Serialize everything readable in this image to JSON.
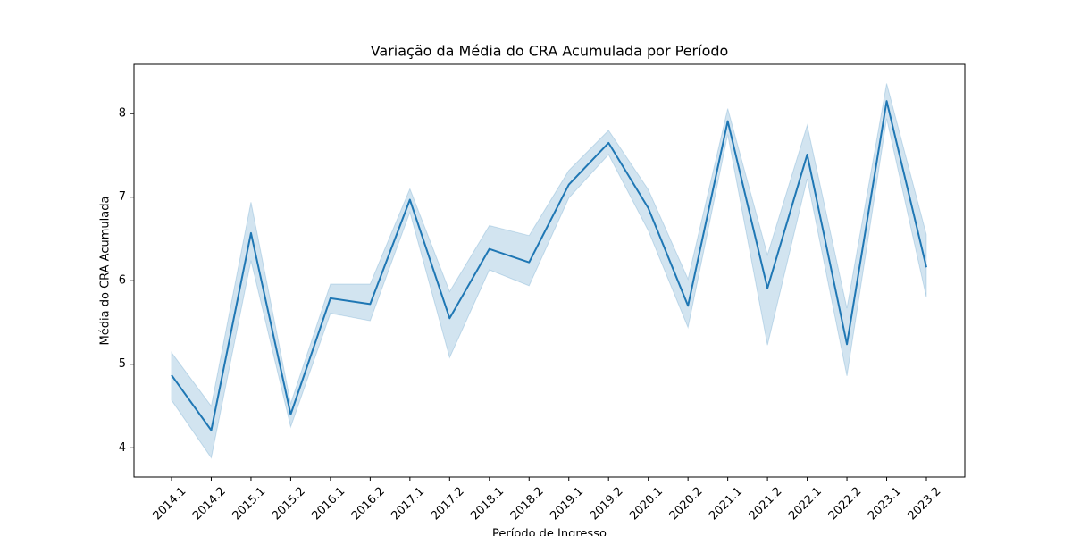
{
  "chart_data": {
    "type": "line",
    "title": "Variação da Média do CRA Acumulada por Período",
    "xlabel": "Período de Ingresso",
    "ylabel": "Média do CRA Acumulada",
    "categories": [
      "2014.1",
      "2014.2",
      "2015.1",
      "2015.2",
      "2016.1",
      "2016.2",
      "2017.1",
      "2017.2",
      "2018.1",
      "2018.2",
      "2019.1",
      "2019.2",
      "2020.1",
      "2020.2",
      "2021.1",
      "2021.2",
      "2022.1",
      "2022.2",
      "2023.1",
      "2023.2"
    ],
    "series": [
      {
        "color": "#1f77b4",
        "values": [
          4.87,
          4.21,
          6.57,
          4.4,
          5.79,
          5.72,
          6.97,
          5.55,
          6.38,
          6.22,
          7.15,
          7.65,
          6.87,
          5.7,
          7.91,
          5.91,
          7.51,
          5.24,
          8.15,
          6.16
        ],
        "ci_lower": [
          4.57,
          3.88,
          6.24,
          4.25,
          5.61,
          5.52,
          6.82,
          5.08,
          6.13,
          5.94,
          6.99,
          7.51,
          6.6,
          5.44,
          7.75,
          5.23,
          7.22,
          4.86,
          7.94,
          5.8
        ],
        "ci_upper": [
          5.14,
          4.5,
          6.94,
          4.53,
          5.96,
          5.96,
          7.1,
          5.87,
          6.66,
          6.54,
          7.32,
          7.8,
          7.09,
          6.02,
          8.06,
          6.31,
          7.86,
          5.67,
          8.36,
          6.55
        ]
      }
    ],
    "ylim": [
      3.65,
      8.59
    ],
    "yticks": [
      4,
      5,
      6,
      7,
      8
    ],
    "grid": false
  }
}
